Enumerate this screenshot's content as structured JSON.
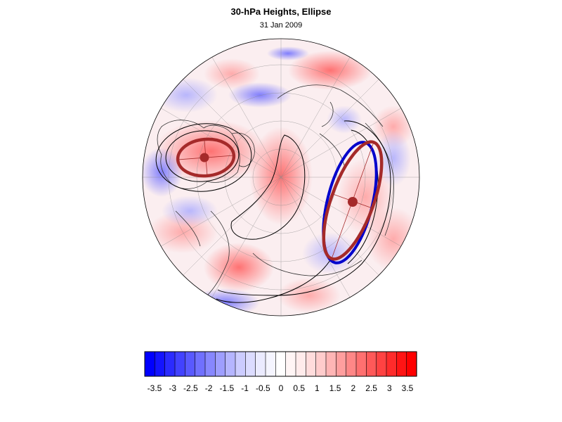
{
  "header": {
    "title": "30-hPa Heights, Ellipse",
    "subtitle": "31 Jan 2009"
  },
  "colorbar": {
    "labels": [
      "-3.5",
      "-3",
      "-2.5",
      "-2",
      "-1.5",
      "-1",
      "-0.5",
      "0",
      "0.5",
      "1",
      "1.5",
      "2",
      "2.5",
      "3",
      "3.5"
    ],
    "colors": [
      "#0000ff",
      "#1414ff",
      "#2b2bff",
      "#4242ff",
      "#5959ff",
      "#7070ff",
      "#8787ff",
      "#9e9eff",
      "#b5b5ff",
      "#ccccff",
      "#dcdcff",
      "#ebebff",
      "#f5f5ff",
      "#ffffff",
      "#fff5f5",
      "#ffebeb",
      "#ffdcdc",
      "#ffcccc",
      "#ffb5b5",
      "#ff9e9e",
      "#ff8787",
      "#ff7070",
      "#ff5959",
      "#ff4242",
      "#ff2b2b",
      "#ff1414",
      "#ff0000"
    ]
  },
  "map": {
    "accent_colors": {
      "red_ellipse": "#a52a2a",
      "blue_ellipse": "#0000cc",
      "contour": "#000000"
    }
  }
}
